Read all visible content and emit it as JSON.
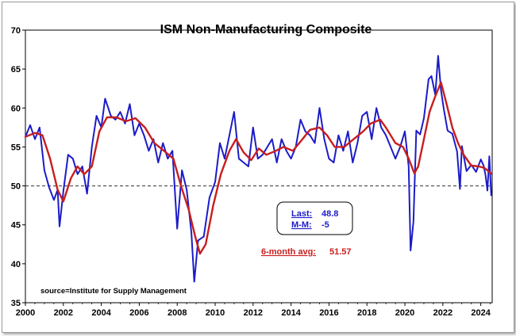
{
  "chart_data": {
    "type": "line",
    "title": "ISM Non-Manufacturing Composite",
    "xlabel": "",
    "ylabel": "",
    "xlim": [
      2000,
      2024.6
    ],
    "ylim": [
      35,
      70
    ],
    "x_ticks": [
      "2000",
      "2002",
      "2004",
      "2006",
      "2008",
      "2010",
      "2012",
      "2014",
      "2016",
      "2018",
      "2020",
      "2022",
      "2024"
    ],
    "y_ticks": [
      "35",
      "40",
      "45",
      "50",
      "55",
      "60",
      "65",
      "70"
    ],
    "reference_line": 50,
    "series": [
      {
        "name": "ISM Non-Manufacturing Composite",
        "color": "#1c1cc8",
        "points": [
          [
            2000.0,
            56.3
          ],
          [
            2000.25,
            57.8
          ],
          [
            2000.5,
            56.0
          ],
          [
            2000.75,
            57.5
          ],
          [
            2001.0,
            52.0
          ],
          [
            2001.25,
            49.8
          ],
          [
            2001.5,
            48.2
          ],
          [
            2001.7,
            49.5
          ],
          [
            2001.8,
            44.8
          ],
          [
            2002.0,
            49.3
          ],
          [
            2002.25,
            54.0
          ],
          [
            2002.5,
            53.5
          ],
          [
            2002.75,
            51.5
          ],
          [
            2003.0,
            52.5
          ],
          [
            2003.25,
            49.0
          ],
          [
            2003.5,
            55.0
          ],
          [
            2003.75,
            59.0
          ],
          [
            2004.0,
            57.5
          ],
          [
            2004.2,
            61.2
          ],
          [
            2004.5,
            59.0
          ],
          [
            2004.75,
            58.5
          ],
          [
            2005.0,
            59.5
          ],
          [
            2005.25,
            58.0
          ],
          [
            2005.5,
            60.5
          ],
          [
            2005.75,
            56.5
          ],
          [
            2006.0,
            58.0
          ],
          [
            2006.25,
            56.5
          ],
          [
            2006.5,
            54.5
          ],
          [
            2006.75,
            56.0
          ],
          [
            2007.0,
            53.0
          ],
          [
            2007.25,
            55.5
          ],
          [
            2007.5,
            53.5
          ],
          [
            2007.75,
            54.5
          ],
          [
            2008.0,
            44.5
          ],
          [
            2008.25,
            52.0
          ],
          [
            2008.5,
            49.5
          ],
          [
            2008.75,
            44.0
          ],
          [
            2008.9,
            37.7
          ],
          [
            2009.1,
            43.0
          ],
          [
            2009.4,
            43.5
          ],
          [
            2009.7,
            48.5
          ],
          [
            2010.0,
            50.5
          ],
          [
            2010.25,
            55.5
          ],
          [
            2010.5,
            53.5
          ],
          [
            2010.75,
            56.5
          ],
          [
            2011.0,
            59.5
          ],
          [
            2011.25,
            53.5
          ],
          [
            2011.5,
            53.0
          ],
          [
            2011.75,
            52.5
          ],
          [
            2012.0,
            57.5
          ],
          [
            2012.25,
            53.5
          ],
          [
            2012.5,
            54.0
          ],
          [
            2012.75,
            55.0
          ],
          [
            2013.0,
            56.0
          ],
          [
            2013.25,
            53.0
          ],
          [
            2013.5,
            56.0
          ],
          [
            2013.75,
            54.5
          ],
          [
            2014.0,
            53.5
          ],
          [
            2014.25,
            55.0
          ],
          [
            2014.5,
            58.5
          ],
          [
            2014.75,
            57.0
          ],
          [
            2015.0,
            56.5
          ],
          [
            2015.25,
            55.5
          ],
          [
            2015.5,
            60.0
          ],
          [
            2015.75,
            56.0
          ],
          [
            2016.0,
            53.5
          ],
          [
            2016.25,
            53.0
          ],
          [
            2016.5,
            56.5
          ],
          [
            2016.75,
            54.5
          ],
          [
            2017.0,
            57.0
          ],
          [
            2017.25,
            53.0
          ],
          [
            2017.5,
            55.5
          ],
          [
            2017.75,
            59.0
          ],
          [
            2018.0,
            59.5
          ],
          [
            2018.25,
            56.0
          ],
          [
            2018.5,
            60.0
          ],
          [
            2018.75,
            57.5
          ],
          [
            2019.0,
            56.5
          ],
          [
            2019.25,
            55.0
          ],
          [
            2019.5,
            53.5
          ],
          [
            2019.75,
            55.0
          ],
          [
            2020.0,
            57.0
          ],
          [
            2020.2,
            52.5
          ],
          [
            2020.3,
            41.7
          ],
          [
            2020.45,
            45.4
          ],
          [
            2020.6,
            57.1
          ],
          [
            2020.8,
            56.6
          ],
          [
            2021.0,
            58.7
          ],
          [
            2021.25,
            63.7
          ],
          [
            2021.4,
            64.1
          ],
          [
            2021.6,
            61.7
          ],
          [
            2021.75,
            66.7
          ],
          [
            2021.9,
            62.3
          ],
          [
            2022.05,
            59.9
          ],
          [
            2022.25,
            57.1
          ],
          [
            2022.5,
            56.7
          ],
          [
            2022.75,
            54.4
          ],
          [
            2022.9,
            49.6
          ],
          [
            2023.0,
            55.1
          ],
          [
            2023.25,
            51.9
          ],
          [
            2023.5,
            52.7
          ],
          [
            2023.75,
            51.8
          ],
          [
            2024.0,
            53.4
          ],
          [
            2024.15,
            52.6
          ],
          [
            2024.25,
            51.4
          ],
          [
            2024.35,
            49.4
          ],
          [
            2024.45,
            53.8
          ],
          [
            2024.55,
            48.8
          ]
        ]
      },
      {
        "name": "6-month avg",
        "color": "#c81e1e",
        "points": [
          [
            2000.0,
            56.3
          ],
          [
            2000.5,
            56.8
          ],
          [
            2000.9,
            56.5
          ],
          [
            2001.3,
            53.5
          ],
          [
            2001.7,
            49.5
          ],
          [
            2002.0,
            48.0
          ],
          [
            2002.4,
            51.0
          ],
          [
            2002.75,
            52.5
          ],
          [
            2003.1,
            51.5
          ],
          [
            2003.5,
            52.5
          ],
          [
            2003.9,
            57.0
          ],
          [
            2004.3,
            58.8
          ],
          [
            2004.8,
            58.8
          ],
          [
            2005.3,
            58.3
          ],
          [
            2005.8,
            58.7
          ],
          [
            2006.3,
            57.5
          ],
          [
            2006.8,
            55.5
          ],
          [
            2007.3,
            54.5
          ],
          [
            2007.8,
            53.5
          ],
          [
            2008.2,
            50.0
          ],
          [
            2008.6,
            47.0
          ],
          [
            2008.95,
            43.5
          ],
          [
            2009.2,
            41.3
          ],
          [
            2009.5,
            42.5
          ],
          [
            2009.9,
            47.5
          ],
          [
            2010.3,
            51.5
          ],
          [
            2010.75,
            54.5
          ],
          [
            2011.1,
            56.0
          ],
          [
            2011.5,
            54.3
          ],
          [
            2011.9,
            53.3
          ],
          [
            2012.3,
            54.8
          ],
          [
            2012.7,
            54.0
          ],
          [
            2013.2,
            54.5
          ],
          [
            2013.6,
            55.0
          ],
          [
            2014.1,
            54.5
          ],
          [
            2014.6,
            56.0
          ],
          [
            2015.0,
            57.2
          ],
          [
            2015.5,
            57.5
          ],
          [
            2015.9,
            56.5
          ],
          [
            2016.3,
            55.0
          ],
          [
            2016.8,
            55.0
          ],
          [
            2017.3,
            56.0
          ],
          [
            2017.8,
            57.0
          ],
          [
            2018.2,
            58.0
          ],
          [
            2018.7,
            58.5
          ],
          [
            2019.0,
            57.5
          ],
          [
            2019.5,
            55.5
          ],
          [
            2019.9,
            55.0
          ],
          [
            2020.2,
            53.5
          ],
          [
            2020.5,
            51.6
          ],
          [
            2020.7,
            52.5
          ],
          [
            2021.0,
            56.0
          ],
          [
            2021.3,
            59.5
          ],
          [
            2021.6,
            61.5
          ],
          [
            2021.9,
            63.3
          ],
          [
            2022.2,
            60.5
          ],
          [
            2022.5,
            57.5
          ],
          [
            2022.8,
            55.5
          ],
          [
            2023.1,
            54.0
          ],
          [
            2023.5,
            52.6
          ],
          [
            2023.9,
            52.5
          ],
          [
            2024.2,
            52.3
          ],
          [
            2024.55,
            51.57
          ]
        ]
      }
    ],
    "annotations": {
      "last_label": "Last:",
      "last_value": "48.8",
      "mm_label": "M-M:",
      "mm_value": "-5",
      "avg_label": "6-month avg:",
      "avg_value": "51.57",
      "source": "source=Institute for Supply Management"
    }
  }
}
